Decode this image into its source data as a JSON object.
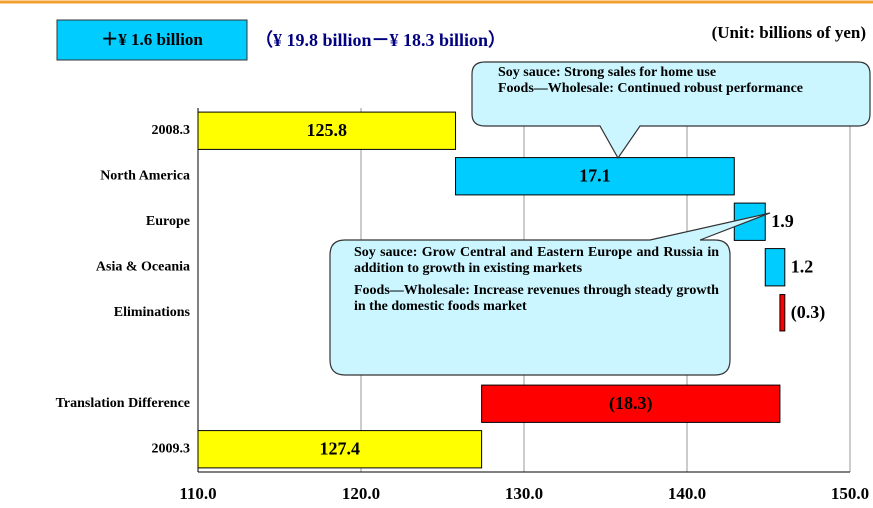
{
  "chart_data": {
    "type": "waterfall",
    "header": "＋¥ 1.6 billion",
    "subheader": "（¥ 19.8 billion－¥ 18.3 billion）",
    "unit": "(Unit: billions of yen)",
    "categories": [
      "2008.3",
      "North America",
      "Europe",
      "Asia & Oceania",
      "Eliminations",
      null,
      "Translation Difference",
      "2009.3"
    ],
    "values": [
      125.8,
      17.1,
      1.9,
      1.2,
      -0.3,
      null,
      -18.3,
      127.4
    ],
    "value_labels": [
      "125.8",
      "17.1",
      "1.9",
      "1.2",
      "(0.3)",
      null,
      "(18.3)",
      "127.4"
    ],
    "colors": [
      "#ffff00",
      "#00ccff",
      "#00ccff",
      "#00ccff",
      "#ff0000",
      null,
      "#ff0000",
      "#ffff00"
    ],
    "xlim": [
      110,
      150
    ],
    "xticks": [
      {
        "value": 110,
        "label": "110.0"
      },
      {
        "value": 120,
        "label": "120.0"
      },
      {
        "value": 130,
        "label": "130.0"
      },
      {
        "value": 140,
        "label": "140.0"
      },
      {
        "value": 150,
        "label": "150.0"
      }
    ],
    "grid": true,
    "annotations": [
      [
        "Soy sauce: Strong sales for home use",
        "Foods—Wholesale: Continued robust performance"
      ],
      [
        "Soy sauce: Grow Central and Eastern Europe and Russia in addition to growth in existing markets",
        "Foods—Wholesale: Increase revenues through steady growth in the domestic foods market"
      ]
    ]
  }
}
